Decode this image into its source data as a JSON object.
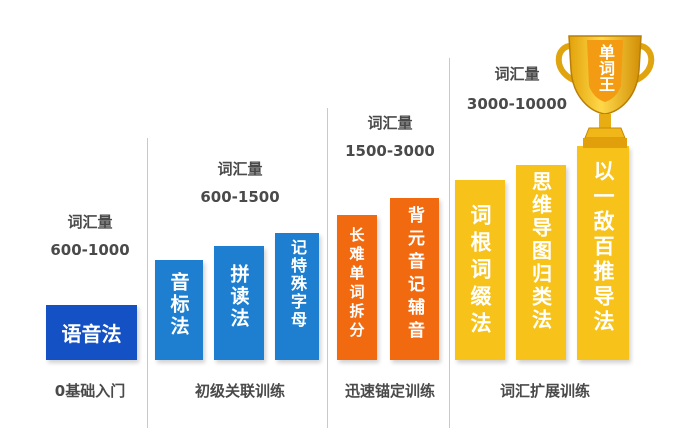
{
  "stages": [
    {
      "vocab_label": "词汇量",
      "vocab_range": "600-1000",
      "title": "0基础入门",
      "blocks": [
        "语音法"
      ]
    },
    {
      "vocab_label": "词汇量",
      "vocab_range": "600-1500",
      "title": "初级关联训练",
      "blocks": [
        "音标法",
        "拼读法",
        "记特殊字母"
      ]
    },
    {
      "vocab_label": "词汇量",
      "vocab_range": "1500-3000",
      "title": "迅速锚定训练",
      "blocks": [
        "长难单词拆分",
        "背元音记辅音"
      ]
    },
    {
      "vocab_label": "词汇量",
      "vocab_range": "3000-10000",
      "title": "词汇扩展训练",
      "blocks": [
        "词根词缀法",
        "思维导图归类法",
        "以一敌百推导法"
      ]
    }
  ],
  "trophy": {
    "label": "单词王"
  },
  "colors": {
    "blue": "#1e7fd0",
    "dark_blue": "#1451c4",
    "orange": "#f26a0f",
    "gold": "#f7c31a"
  }
}
